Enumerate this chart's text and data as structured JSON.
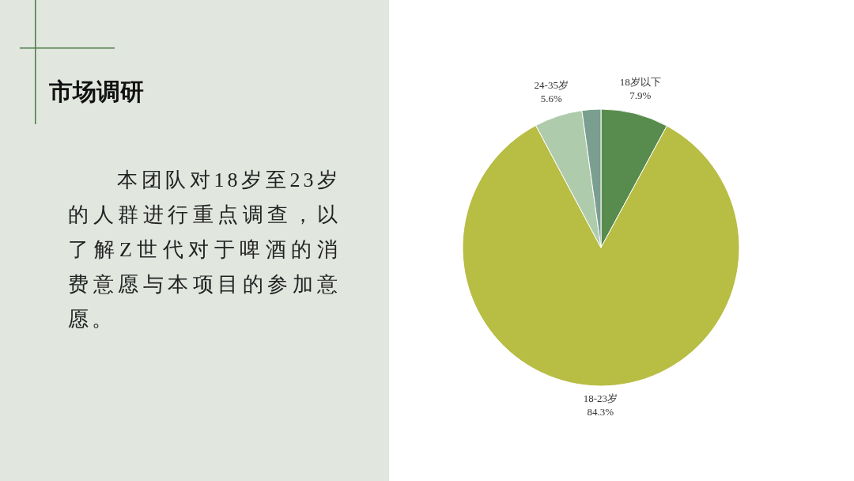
{
  "chart_data": {
    "type": "pie",
    "title": "市场调研",
    "annotations": [
      "本团队对18岁至23岁的人群进行重点调查，以了解Z世代对于啤酒的消费意愿与本项目的参加意愿。"
    ],
    "categories": [
      "18岁以下",
      "18-23岁",
      "24-35岁",
      null
    ],
    "values": [
      7.9,
      84.3,
      5.6,
      2.2
    ],
    "value_labels": [
      "7.9%",
      "84.3%",
      "5.6%",
      null
    ],
    "colors": [
      "#588c4e",
      "#b8bd44",
      "#aecbab",
      "#7a9e8f"
    ],
    "legend": false
  }
}
